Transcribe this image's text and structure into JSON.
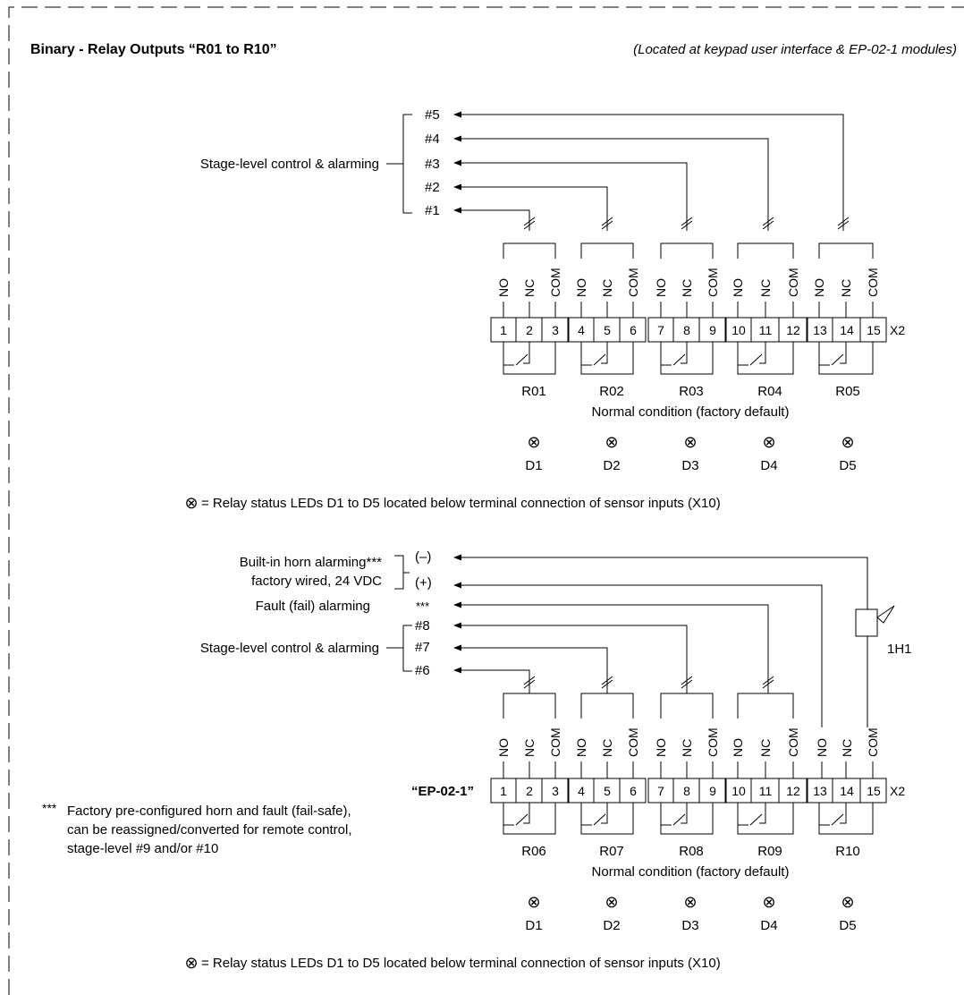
{
  "header": {
    "title": "Binary - Relay Outputs “R01 to R10”",
    "subtitle": "(Located at keypad user interface & EP-02-1 modules)"
  },
  "terminal": {
    "numbers": [
      "1",
      "2",
      "3",
      "4",
      "5",
      "6",
      "7",
      "8",
      "9",
      "10",
      "11",
      "12",
      "13",
      "14",
      "15"
    ],
    "contacts": [
      "NO",
      "NC",
      "COM"
    ],
    "strip_label": "X2"
  },
  "leds": {
    "symbol": "⊗",
    "names": [
      "D1",
      "D2",
      "D3",
      "D4",
      "D5"
    ],
    "note": "= Relay status LEDs D1 to D5 located below terminal connection of sensor inputs (X10)"
  },
  "normal_condition": "Normal condition (factory default)",
  "section1": {
    "group_label": "Stage-level control & alarming",
    "stages": [
      "#5",
      "#4",
      "#3",
      "#2",
      "#1"
    ],
    "relays": [
      "R01",
      "R02",
      "R03",
      "R04",
      "R05"
    ]
  },
  "section2": {
    "horn_label_line1": "Built-in horn alarming***",
    "horn_label_line2": "factory wired, 24 VDC",
    "horn_minus": "(–)",
    "horn_plus": "(+)",
    "fault_label": "Fault (fail) alarming",
    "fault_marker": "***",
    "group_label": "Stage-level control & alarming",
    "stages": [
      "#8",
      "#7",
      "#6"
    ],
    "relays": [
      "R06",
      "R07",
      "R08",
      "R09",
      "R10"
    ],
    "module_label": "“EP-02-1”",
    "horn_device": "1H1",
    "footnote_marker": "***",
    "footnote_lines": [
      "Factory pre-configured horn and fault (fail-safe),",
      "can be reassigned/converted for remote control,",
      "stage-level #9 and/or #10"
    ]
  }
}
